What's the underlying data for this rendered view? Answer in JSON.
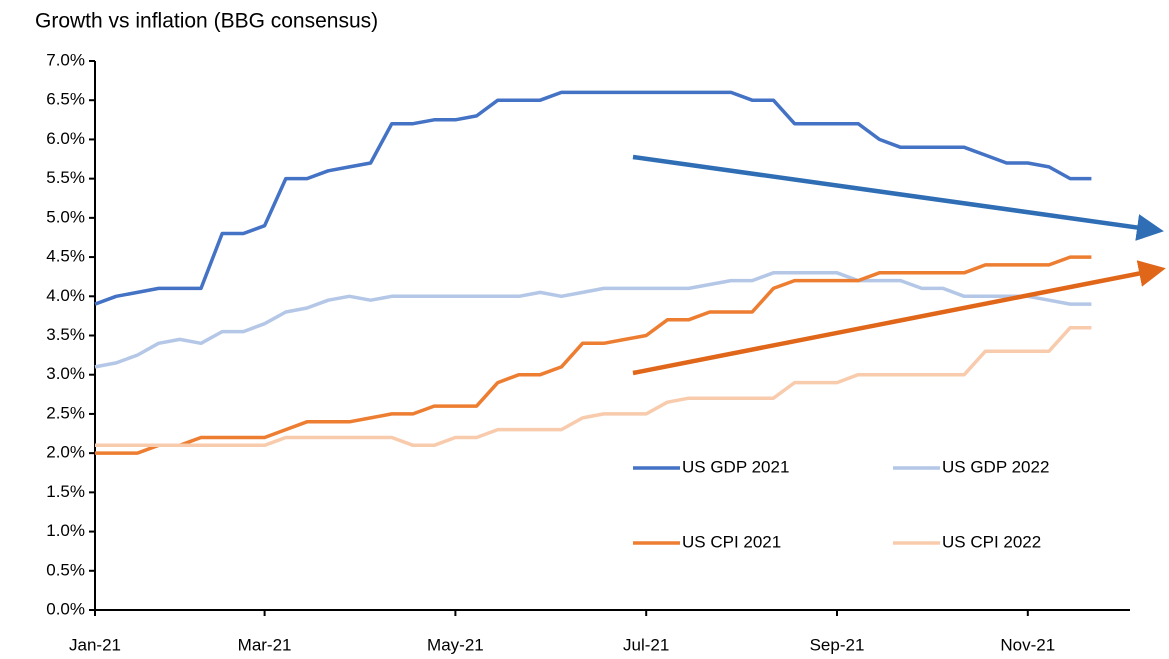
{
  "chart_data": {
    "type": "line",
    "title": "Growth vs inflation (BBG consensus)",
    "categories": [
      "Jan-21",
      null,
      null,
      null,
      null,
      null,
      null,
      null,
      "Mar-21",
      null,
      null,
      null,
      null,
      null,
      null,
      null,
      null,
      "May-21",
      null,
      null,
      null,
      null,
      null,
      null,
      null,
      null,
      "Jul-21",
      null,
      null,
      null,
      null,
      null,
      null,
      null,
      null,
      "Sep-21",
      null,
      null,
      null,
      null,
      null,
      null,
      null,
      null,
      "Nov-21",
      null,
      null,
      null
    ],
    "series": [
      {
        "name": "US GDP 2021",
        "color": "#4472c4",
        "values": [
          3.9,
          4.0,
          4.05,
          4.1,
          4.1,
          4.1,
          4.8,
          4.8,
          4.9,
          5.5,
          5.5,
          5.6,
          5.65,
          5.7,
          6.2,
          6.2,
          6.25,
          6.25,
          6.3,
          6.5,
          6.5,
          6.5,
          6.6,
          6.6,
          6.6,
          6.6,
          6.6,
          6.6,
          6.6,
          6.6,
          6.6,
          6.5,
          6.5,
          6.2,
          6.2,
          6.2,
          6.2,
          6.0,
          5.9,
          5.9,
          5.9,
          5.9,
          5.8,
          5.7,
          5.7,
          5.65,
          5.5,
          5.5
        ]
      },
      {
        "name": "US GDP 2022",
        "color": "#b4c7e7",
        "values": [
          3.1,
          3.15,
          3.25,
          3.4,
          3.45,
          3.4,
          3.55,
          3.55,
          3.65,
          3.8,
          3.85,
          3.95,
          4.0,
          3.95,
          4.0,
          4.0,
          4.0,
          4.0,
          4.0,
          4.0,
          4.0,
          4.05,
          4.0,
          4.05,
          4.1,
          4.1,
          4.1,
          4.1,
          4.1,
          4.15,
          4.2,
          4.2,
          4.3,
          4.3,
          4.3,
          4.3,
          4.2,
          4.2,
          4.2,
          4.1,
          4.1,
          4.0,
          4.0,
          4.0,
          4.0,
          3.95,
          3.9,
          3.9
        ]
      },
      {
        "name": "US CPI 2021",
        "color": "#ed7d31",
        "values": [
          2.0,
          2.0,
          2.0,
          2.1,
          2.1,
          2.2,
          2.2,
          2.2,
          2.2,
          2.3,
          2.4,
          2.4,
          2.4,
          2.45,
          2.5,
          2.5,
          2.6,
          2.6,
          2.6,
          2.9,
          3.0,
          3.0,
          3.1,
          3.4,
          3.4,
          3.45,
          3.5,
          3.7,
          3.7,
          3.8,
          3.8,
          3.8,
          4.1,
          4.2,
          4.2,
          4.2,
          4.2,
          4.3,
          4.3,
          4.3,
          4.3,
          4.3,
          4.4,
          4.4,
          4.4,
          4.4,
          4.5,
          4.5
        ]
      },
      {
        "name": "US CPI 2022",
        "color": "#f8cbad",
        "values": [
          2.1,
          2.1,
          2.1,
          2.1,
          2.1,
          2.1,
          2.1,
          2.1,
          2.1,
          2.2,
          2.2,
          2.2,
          2.2,
          2.2,
          2.2,
          2.1,
          2.1,
          2.2,
          2.2,
          2.3,
          2.3,
          2.3,
          2.3,
          2.45,
          2.5,
          2.5,
          2.5,
          2.65,
          2.7,
          2.7,
          2.7,
          2.7,
          2.7,
          2.9,
          2.9,
          2.9,
          3.0,
          3.0,
          3.0,
          3.0,
          3.0,
          3.0,
          3.3,
          3.3,
          3.3,
          3.3,
          3.6,
          3.6
        ]
      }
    ],
    "ylim": [
      0,
      7
    ],
    "yticks": [
      {
        "value": 0,
        "label": "0.0%"
      },
      {
        "value": 0.5,
        "label": "0.5%"
      },
      {
        "value": 1,
        "label": "1.0%"
      },
      {
        "value": 1.5,
        "label": "1.5%"
      },
      {
        "value": 2,
        "label": "2.0%"
      },
      {
        "value": 2.5,
        "label": "2.5%"
      },
      {
        "value": 3,
        "label": "3.0%"
      },
      {
        "value": 3.5,
        "label": "3.5%"
      },
      {
        "value": 4,
        "label": "4.0%"
      },
      {
        "value": 4.5,
        "label": "4.5%"
      },
      {
        "value": 5,
        "label": "5.0%"
      },
      {
        "value": 5.5,
        "label": "5.5%"
      },
      {
        "value": 6,
        "label": "6.0%"
      },
      {
        "value": 6.5,
        "label": "6.5%"
      },
      {
        "value": 7,
        "label": "7.0%"
      }
    ],
    "grid": false,
    "legend": "lower right"
  }
}
